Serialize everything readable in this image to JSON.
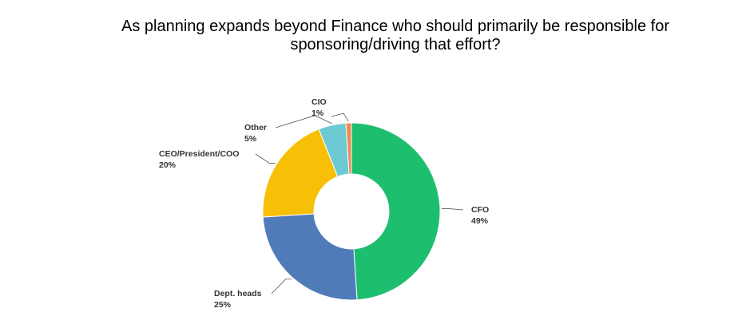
{
  "chart_data": {
    "type": "donut",
    "title": "As planning expands beyond Finance who should primarily be responsible for sponsoring/driving that effort?",
    "categories": [
      "CFO",
      "Dept. heads",
      "CEO/President/COO",
      "Other",
      "CIO"
    ],
    "values": [
      49,
      25,
      20,
      5,
      1
    ],
    "value_labels": [
      "49%",
      "25%",
      "20%",
      "5%",
      "1%"
    ],
    "colors": [
      "#1dbf6f",
      "#4f7bb8",
      "#f8bf07",
      "#6ecad2",
      "#ef8a50"
    ]
  }
}
